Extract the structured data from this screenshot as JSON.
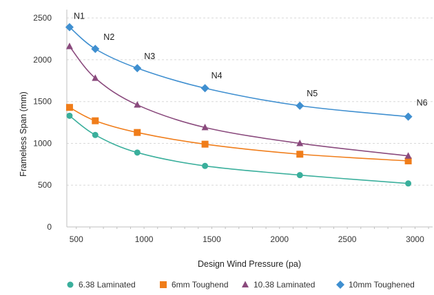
{
  "chart_data": {
    "type": "line",
    "title": "",
    "xlabel": "Design Wind Pressure (pa)",
    "ylabel": "Frameless Span (mm)",
    "xlim": [
      430,
      3130
    ],
    "ylim": [
      0,
      2600
    ],
    "x_ticks": [
      500,
      1000,
      1500,
      2000,
      2500,
      3000
    ],
    "y_ticks": [
      0,
      500,
      1000,
      1500,
      2000,
      2500
    ],
    "grid": "horizontal dashed",
    "legend_position": "bottom",
    "x": [
      450,
      640,
      950,
      1450,
      2150,
      2950
    ],
    "point_labels": [
      "N1",
      "N2",
      "N3",
      "N4",
      "N5",
      "N6"
    ],
    "series": [
      {
        "name": "6.38 Laminated",
        "color": "#3aaf9c",
        "marker": "circle",
        "values": [
          1330,
          1100,
          890,
          730,
          620,
          520
        ]
      },
      {
        "name": "6mm Toughend",
        "color": "#f07d1a",
        "marker": "square",
        "values": [
          1430,
          1270,
          1130,
          990,
          870,
          790
        ]
      },
      {
        "name": "10.38 Laminated",
        "color": "#8a4a7d",
        "marker": "triangle",
        "values": [
          2160,
          1780,
          1460,
          1190,
          1000,
          850
        ]
      },
      {
        "name": "10mm Toughened",
        "color": "#3f8fd0",
        "marker": "diamond",
        "values": [
          2390,
          2130,
          1900,
          1660,
          1450,
          1320
        ]
      }
    ]
  }
}
